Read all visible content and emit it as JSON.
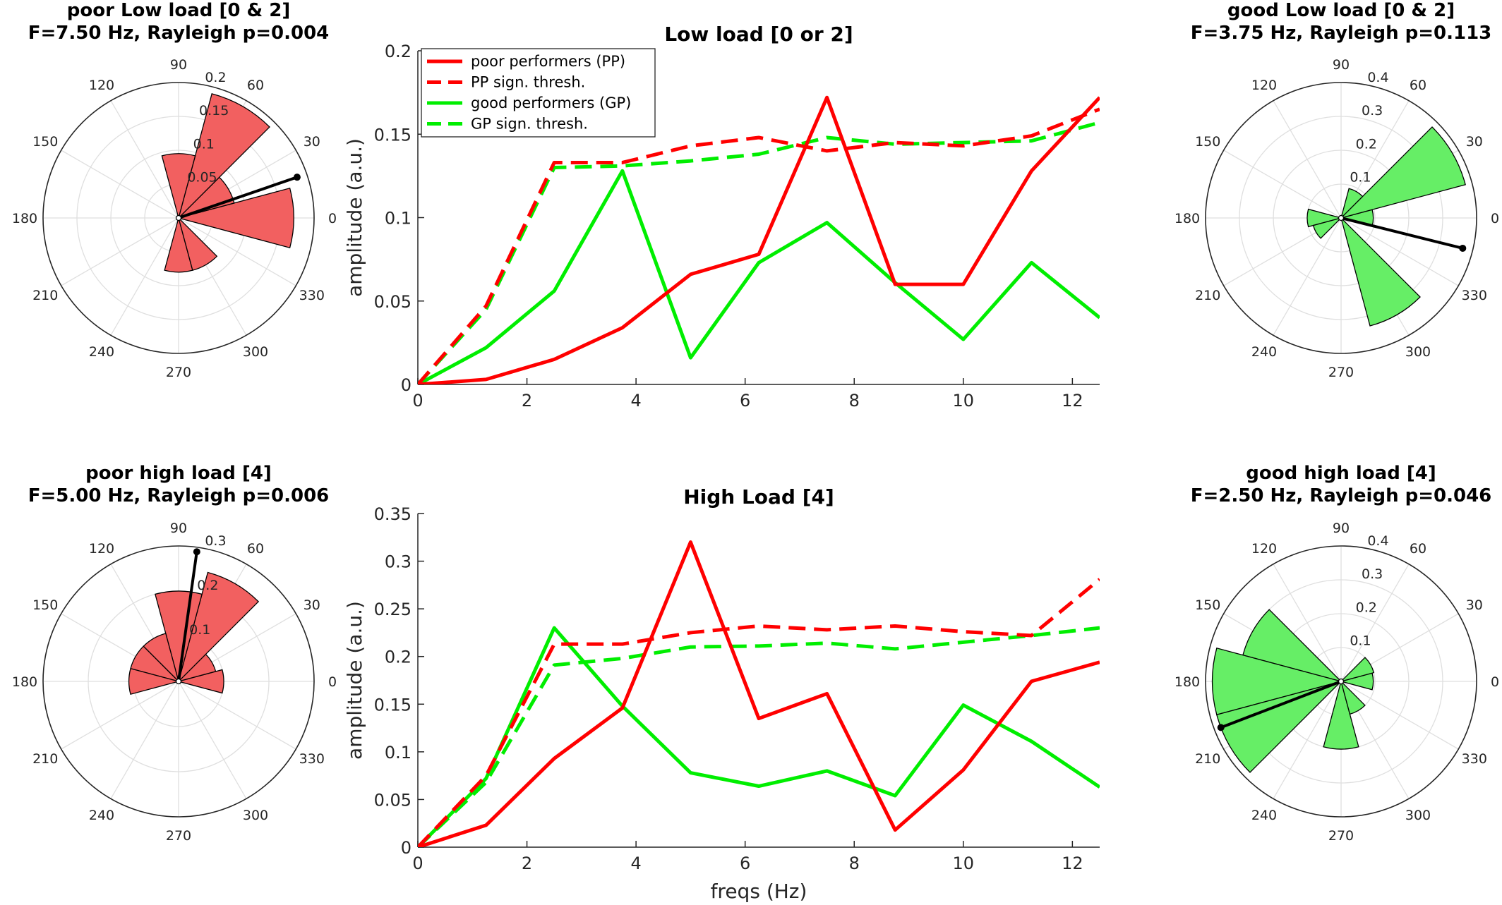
{
  "colors": {
    "poor": "#ff0000",
    "good": "#00ee00",
    "poor_fill": "#f26060",
    "good_fill": "#66ee66",
    "vector": "#000000",
    "axis": "#262626",
    "grid": "#dfdfdf"
  },
  "chart_data": [
    {
      "type": "polar-histogram",
      "id": "poor-low",
      "title_line1": "poor Low load [0 & 2]",
      "title_line2": "F=7.50 Hz, Rayleigh p=0.004",
      "angle_labels": [
        "0",
        "30",
        "60",
        "90",
        "120",
        "150",
        "180",
        "210",
        "240",
        "270",
        "300",
        "330"
      ],
      "rmax": 0.2,
      "rticks": [
        0.05,
        0.1,
        0.15,
        0.2
      ],
      "rtick_labels": [
        "0.05",
        "0.1",
        "0.15",
        "0.2"
      ],
      "rtick_angle_deg": 80,
      "bins": [
        {
          "start_deg": -15,
          "end_deg": 15,
          "r": 0.17
        },
        {
          "start_deg": 15,
          "end_deg": 45,
          "r": 0.085
        },
        {
          "start_deg": 45,
          "end_deg": 75,
          "r": 0.19
        },
        {
          "start_deg": 75,
          "end_deg": 105,
          "r": 0.095
        },
        {
          "start_deg": 255,
          "end_deg": 285,
          "r": 0.08
        },
        {
          "start_deg": 285,
          "end_deg": 315,
          "r": 0.08
        }
      ],
      "vector": {
        "angle_deg": 19,
        "r": 0.185
      },
      "color": "poor"
    },
    {
      "type": "line",
      "id": "low-load",
      "title": "Low load [0 or 2]",
      "xlabel": "",
      "ylabel": "amplitude (a.u.)",
      "xlim": [
        0,
        12.5
      ],
      "ylim": [
        0,
        0.2
      ],
      "xticks": [
        0,
        2,
        4,
        6,
        8,
        10,
        12
      ],
      "xtick_labels": [
        "0",
        "2",
        "4",
        "6",
        "8",
        "10",
        "12"
      ],
      "yticks": [
        0,
        0.05,
        0.1,
        0.15,
        0.2
      ],
      "ytick_labels": [
        "0",
        "0.05",
        "0.1",
        "0.15",
        "0.2"
      ],
      "x": [
        0,
        1.25,
        2.5,
        3.75,
        5,
        6.25,
        7.5,
        8.75,
        10,
        11.25,
        12.5
      ],
      "series": [
        {
          "name": "poor performers (PP)",
          "color": "poor",
          "dash": false,
          "values": [
            0,
            0.003,
            0.015,
            0.034,
            0.066,
            0.078,
            0.172,
            0.06,
            0.06,
            0.128,
            0.172
          ]
        },
        {
          "name": "PP sign. thresh.",
          "color": "poor",
          "dash": true,
          "values": [
            0,
            0.047,
            0.133,
            0.133,
            0.143,
            0.148,
            0.14,
            0.145,
            0.143,
            0.149,
            0.165
          ]
        },
        {
          "name": "good performers (GP)",
          "color": "good",
          "dash": false,
          "values": [
            0,
            0.022,
            0.056,
            0.128,
            0.016,
            0.073,
            0.097,
            0.061,
            0.027,
            0.073,
            0.04
          ]
        },
        {
          "name": "GP sign. thresh.",
          "color": "good",
          "dash": true,
          "values": [
            0,
            0.045,
            0.13,
            0.131,
            0.134,
            0.138,
            0.148,
            0.144,
            0.145,
            0.146,
            0.157
          ]
        }
      ],
      "legend": true,
      "legend_placement": "top-left"
    },
    {
      "type": "polar-histogram",
      "id": "good-low",
      "title_line1": "good Low load [0 & 2]",
      "title_line2": "F=3.75 Hz, Rayleigh p=0.113",
      "angle_labels": [
        "0",
        "30",
        "60",
        "90",
        "120",
        "150",
        "180",
        "210",
        "240",
        "270",
        "300",
        "330"
      ],
      "rmax": 0.4,
      "rticks": [
        0.1,
        0.2,
        0.3,
        0.4
      ],
      "rtick_labels": [
        "0.1",
        "0.2",
        "0.3",
        "0.4"
      ],
      "rtick_angle_deg": 80,
      "bins": [
        {
          "start_deg": -15,
          "end_deg": 15,
          "r": 0.095
        },
        {
          "start_deg": 15,
          "end_deg": 45,
          "r": 0.38
        },
        {
          "start_deg": 45,
          "end_deg": 75,
          "r": 0.09
        },
        {
          "start_deg": 165,
          "end_deg": 195,
          "r": 0.1
        },
        {
          "start_deg": 195,
          "end_deg": 225,
          "r": 0.085
        },
        {
          "start_deg": 285,
          "end_deg": 315,
          "r": 0.33
        }
      ],
      "vector": {
        "angle_deg": -14,
        "r": 0.37
      },
      "color": "good"
    },
    {
      "type": "polar-histogram",
      "id": "poor-high",
      "title_line1": "poor high load [4]",
      "title_line2": "F=5.00 Hz, Rayleigh p=0.006",
      "angle_labels": [
        "0",
        "30",
        "60",
        "90",
        "120",
        "150",
        "180",
        "210",
        "240",
        "270",
        "300",
        "330"
      ],
      "rmax": 0.3,
      "rticks": [
        0.1,
        0.2,
        0.3
      ],
      "rtick_labels": [
        "0.1",
        "0.2",
        "0.3"
      ],
      "rtick_angle_deg": 80,
      "bins": [
        {
          "start_deg": -15,
          "end_deg": 15,
          "r": 0.1
        },
        {
          "start_deg": 15,
          "end_deg": 45,
          "r": 0.085
        },
        {
          "start_deg": 45,
          "end_deg": 75,
          "r": 0.25
        },
        {
          "start_deg": 75,
          "end_deg": 105,
          "r": 0.2
        },
        {
          "start_deg": 105,
          "end_deg": 135,
          "r": 0.11
        },
        {
          "start_deg": 135,
          "end_deg": 165,
          "r": 0.11
        },
        {
          "start_deg": 165,
          "end_deg": 195,
          "r": 0.11
        }
      ],
      "vector": {
        "angle_deg": 82,
        "r": 0.29
      },
      "color": "poor"
    },
    {
      "type": "line",
      "id": "high-load",
      "title": "High Load [4]",
      "xlabel": "freqs (Hz)",
      "ylabel": "amplitude (a.u.)",
      "xlim": [
        0,
        12.5
      ],
      "ylim": [
        0,
        0.35
      ],
      "xticks": [
        0,
        2,
        4,
        6,
        8,
        10,
        12
      ],
      "xtick_labels": [
        "0",
        "2",
        "4",
        "6",
        "8",
        "10",
        "12"
      ],
      "yticks": [
        0,
        0.05,
        0.1,
        0.15,
        0.2,
        0.25,
        0.3,
        0.35
      ],
      "ytick_labels": [
        "0",
        "0.05",
        "0.1",
        "0.15",
        "0.2",
        "0.25",
        "0.3",
        "0.35"
      ],
      "x": [
        0,
        1.25,
        2.5,
        3.75,
        5,
        6.25,
        7.5,
        8.75,
        10,
        11.25,
        12.5
      ],
      "series": [
        {
          "name": "poor performers (PP)",
          "color": "poor",
          "dash": false,
          "values": [
            0,
            0.023,
            0.093,
            0.146,
            0.32,
            0.135,
            0.161,
            0.018,
            0.081,
            0.174,
            0.194
          ]
        },
        {
          "name": "PP sign. thresh.",
          "color": "poor",
          "dash": true,
          "values": [
            0,
            0.075,
            0.213,
            0.213,
            0.225,
            0.232,
            0.228,
            0.232,
            0.226,
            0.222,
            0.281
          ]
        },
        {
          "name": "good performers (GP)",
          "color": "good",
          "dash": false,
          "values": [
            0,
            0.072,
            0.23,
            0.148,
            0.078,
            0.064,
            0.08,
            0.054,
            0.149,
            0.111,
            0.063
          ]
        },
        {
          "name": "GP sign. thresh.",
          "color": "good",
          "dash": true,
          "values": [
            0,
            0.068,
            0.191,
            0.198,
            0.21,
            0.211,
            0.214,
            0.208,
            0.215,
            0.222,
            0.23
          ]
        }
      ],
      "legend": false
    },
    {
      "type": "polar-histogram",
      "id": "good-high",
      "title_line1": "good high load [4]",
      "title_line2": "F=2.50 Hz, Rayleigh p=0.046",
      "angle_labels": [
        "0",
        "30",
        "60",
        "90",
        "120",
        "150",
        "180",
        "210",
        "240",
        "270",
        "300",
        "330"
      ],
      "rmax": 0.4,
      "rticks": [
        0.1,
        0.2,
        0.3,
        0.4
      ],
      "rtick_labels": [
        "0.1",
        "0.2",
        "0.3",
        "0.4"
      ],
      "rtick_angle_deg": 80,
      "bins": [
        {
          "start_deg": -15,
          "end_deg": 15,
          "r": 0.095
        },
        {
          "start_deg": 15,
          "end_deg": 45,
          "r": 0.1
        },
        {
          "start_deg": 135,
          "end_deg": 165,
          "r": 0.3
        },
        {
          "start_deg": 165,
          "end_deg": 195,
          "r": 0.38
        },
        {
          "start_deg": 195,
          "end_deg": 225,
          "r": 0.38
        },
        {
          "start_deg": 255,
          "end_deg": 285,
          "r": 0.2
        },
        {
          "start_deg": 285,
          "end_deg": 315,
          "r": 0.1
        }
      ],
      "vector": {
        "angle_deg": 201,
        "r": 0.38
      },
      "color": "good"
    }
  ]
}
